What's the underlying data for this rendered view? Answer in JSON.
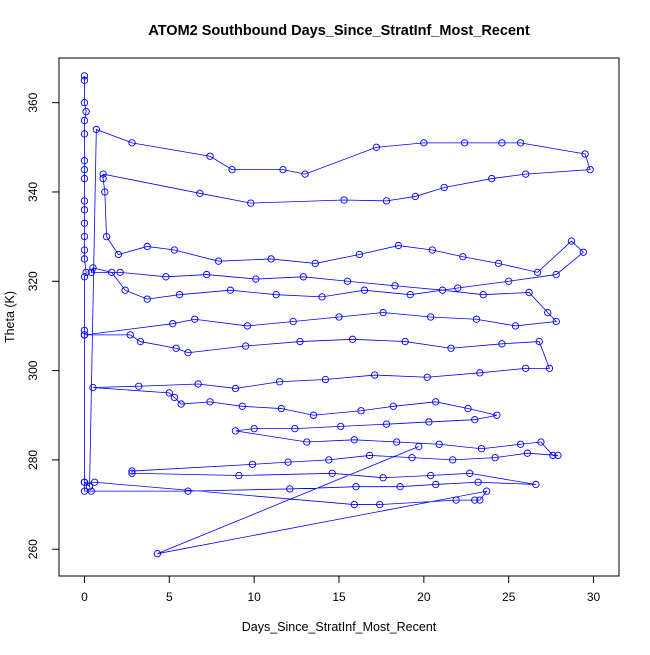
{
  "chart_data": {
    "type": "scatter",
    "title": "ATOM2 Southbound Days_Since_StratInf_Most_Recent",
    "xlabel": "Days_Since_StratInf_Most_Recent",
    "ylabel": "Theta (K)",
    "xlim": [
      -1.5,
      31.5
    ],
    "ylim": [
      254,
      370
    ],
    "xticks": [
      0,
      5,
      10,
      15,
      20,
      25,
      30
    ],
    "yticks": [
      260,
      280,
      300,
      320,
      340,
      360
    ],
    "grid": false,
    "legend": "none",
    "colors": {
      "series": "#0000ff",
      "axis": "#000000",
      "background": "#ffffff"
    },
    "series": [
      {
        "line_style": "connected points with open circles",
        "points": [
          [
            0.0,
            366.0
          ],
          [
            0.0,
            365.0
          ],
          [
            0.0,
            360.0
          ],
          [
            0.1,
            358.0
          ],
          [
            0.0,
            356.0
          ],
          [
            0.0,
            353.0
          ],
          [
            0.0,
            347.0
          ],
          [
            0.0,
            345.0
          ],
          [
            0.0,
            343.0
          ],
          [
            0.0,
            338.0
          ],
          [
            0.0,
            336.0
          ],
          [
            0.0,
            333.0
          ],
          [
            0.0,
            330.0
          ],
          [
            0.0,
            327.0
          ],
          [
            0.0,
            325.0
          ],
          [
            0.1,
            322.0
          ],
          [
            0.0,
            321.0
          ],
          [
            0.0,
            309.0
          ],
          [
            0.0,
            308.0
          ],
          [
            0.0,
            275.0
          ],
          [
            0.3,
            274.0
          ],
          [
            0.7,
            354.0
          ],
          [
            2.8,
            351.0
          ],
          [
            7.4,
            348.0
          ],
          [
            8.7,
            345.0
          ],
          [
            11.7,
            345.0
          ],
          [
            13.0,
            344.0
          ],
          [
            17.2,
            350.0
          ],
          [
            20.0,
            351.0
          ],
          [
            22.4,
            351.0
          ],
          [
            24.6,
            351.0
          ],
          [
            25.7,
            351.0
          ],
          [
            29.5,
            348.5
          ],
          [
            29.8,
            345.0
          ],
          [
            26.0,
            344.0
          ],
          [
            24.0,
            343.0
          ],
          [
            21.2,
            341.0
          ],
          [
            19.5,
            339.0
          ],
          [
            17.8,
            338.0
          ],
          [
            15.3,
            338.2
          ],
          [
            9.8,
            337.5
          ],
          [
            6.8,
            339.7
          ],
          [
            1.1,
            344.0
          ],
          [
            1.1,
            343.0
          ],
          [
            1.2,
            340.0
          ],
          [
            1.3,
            330.0
          ],
          [
            2.0,
            326.0
          ],
          [
            3.7,
            327.8
          ],
          [
            5.3,
            327.0
          ],
          [
            7.9,
            324.5
          ],
          [
            11.0,
            325.0
          ],
          [
            13.6,
            324.0
          ],
          [
            16.2,
            326.0
          ],
          [
            18.5,
            328.0
          ],
          [
            20.5,
            327.0
          ],
          [
            22.3,
            325.5
          ],
          [
            24.4,
            324.0
          ],
          [
            26.7,
            322.0
          ],
          [
            28.7,
            329.0
          ],
          [
            29.4,
            326.5
          ],
          [
            27.8,
            321.5
          ],
          [
            25.0,
            320.0
          ],
          [
            22.0,
            318.5
          ],
          [
            19.2,
            317.0
          ],
          [
            16.5,
            318.0
          ],
          [
            14.0,
            316.5
          ],
          [
            11.3,
            317.0
          ],
          [
            8.6,
            318.0
          ],
          [
            5.6,
            317.0
          ],
          [
            3.7,
            316.0
          ],
          [
            2.4,
            318.0
          ],
          [
            1.6,
            322.0
          ],
          [
            0.5,
            323.0
          ],
          [
            0.4,
            322.0
          ],
          [
            2.1,
            322.0
          ],
          [
            4.8,
            321.0
          ],
          [
            7.2,
            321.5
          ],
          [
            10.1,
            320.5
          ],
          [
            12.9,
            321.0
          ],
          [
            15.5,
            320.0
          ],
          [
            18.3,
            319.0
          ],
          [
            21.1,
            318.0
          ],
          [
            23.5,
            317.0
          ],
          [
            26.2,
            317.5
          ],
          [
            27.3,
            313.0
          ],
          [
            27.8,
            311.0
          ],
          [
            25.4,
            310.0
          ],
          [
            23.1,
            311.5
          ],
          [
            20.4,
            312.0
          ],
          [
            17.6,
            313.0
          ],
          [
            15.0,
            312.0
          ],
          [
            12.3,
            311.0
          ],
          [
            9.6,
            310.0
          ],
          [
            6.5,
            311.5
          ],
          [
            5.2,
            310.5
          ],
          [
            0.0,
            308.0
          ],
          [
            2.7,
            308.0
          ],
          [
            3.3,
            306.5
          ],
          [
            5.4,
            305.0
          ],
          [
            6.1,
            304.0
          ],
          [
            9.5,
            305.5
          ],
          [
            12.7,
            306.5
          ],
          [
            15.8,
            307.0
          ],
          [
            18.9,
            306.5
          ],
          [
            21.6,
            305.0
          ],
          [
            24.6,
            306.0
          ],
          [
            26.8,
            306.5
          ],
          [
            27.4,
            300.5
          ],
          [
            26.0,
            300.5
          ],
          [
            23.3,
            299.5
          ],
          [
            20.2,
            298.5
          ],
          [
            17.1,
            299.0
          ],
          [
            14.2,
            298.0
          ],
          [
            11.5,
            297.5
          ],
          [
            8.9,
            296.0
          ],
          [
            6.7,
            297.0
          ],
          [
            3.2,
            296.5
          ],
          [
            0.5,
            296.2
          ],
          [
            5.0,
            295.0
          ],
          [
            5.3,
            294.0
          ],
          [
            5.7,
            292.5
          ],
          [
            7.4,
            293.0
          ],
          [
            9.3,
            292.0
          ],
          [
            11.6,
            291.5
          ],
          [
            13.5,
            290.0
          ],
          [
            16.3,
            291.0
          ],
          [
            18.2,
            292.0
          ],
          [
            20.7,
            293.0
          ],
          [
            22.6,
            291.5
          ],
          [
            24.3,
            290.0
          ],
          [
            23.0,
            289.0
          ],
          [
            20.3,
            288.5
          ],
          [
            17.8,
            288.0
          ],
          [
            15.1,
            287.5
          ],
          [
            12.4,
            287.0
          ],
          [
            10.0,
            287.0
          ],
          [
            8.9,
            286.5
          ],
          [
            13.1,
            284.0
          ],
          [
            15.9,
            284.5
          ],
          [
            18.4,
            284.0
          ],
          [
            20.9,
            283.5
          ],
          [
            23.4,
            282.5
          ],
          [
            25.7,
            283.5
          ],
          [
            26.9,
            284.0
          ],
          [
            27.6,
            281.0
          ],
          [
            27.9,
            281.0
          ],
          [
            26.1,
            281.5
          ],
          [
            24.2,
            280.5
          ],
          [
            21.7,
            280.0
          ],
          [
            19.3,
            280.5
          ],
          [
            16.8,
            281.0
          ],
          [
            14.4,
            280.0
          ],
          [
            12.0,
            279.5
          ],
          [
            9.9,
            279.0
          ],
          [
            2.8,
            277.5
          ],
          [
            2.8,
            277.0
          ],
          [
            9.1,
            276.5
          ],
          [
            14.6,
            277.0
          ],
          [
            17.6,
            276.0
          ],
          [
            20.4,
            276.5
          ],
          [
            22.7,
            277.0
          ],
          [
            26.6,
            274.5
          ],
          [
            23.2,
            275.0
          ],
          [
            20.7,
            274.5
          ],
          [
            18.6,
            274.0
          ],
          [
            16.0,
            274.0
          ],
          [
            12.1,
            273.5
          ],
          [
            6.1,
            273.0
          ],
          [
            0.4,
            273.0
          ],
          [
            0.0,
            273.0
          ],
          [
            0.0,
            275.0
          ],
          [
            0.6,
            275.0
          ],
          [
            15.9,
            270.0
          ],
          [
            17.4,
            270.0
          ],
          [
            21.9,
            271.0
          ],
          [
            23.0,
            271.0
          ],
          [
            23.3,
            271.0
          ],
          [
            23.7,
            273.0
          ],
          [
            4.3,
            259.0
          ],
          [
            19.7,
            283.0
          ]
        ]
      }
    ]
  }
}
